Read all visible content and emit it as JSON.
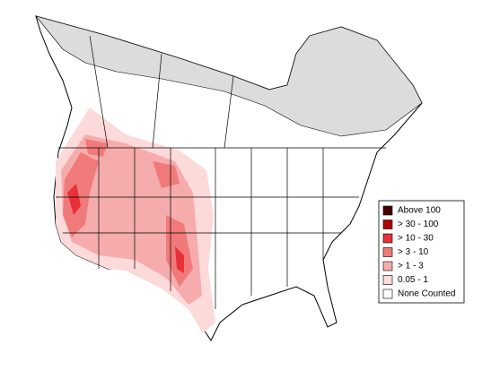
{
  "legend": {
    "items": [
      {
        "label": "Above 100",
        "color": "#4a0000"
      },
      {
        "label": "> 30 - 100",
        "color": "#b40000"
      },
      {
        "label": "> 10 - 30",
        "color": "#e83038"
      },
      {
        "label": "> 3 - 10",
        "color": "#f07a7a"
      },
      {
        "label": "> 1 - 3",
        "color": "#f6acac"
      },
      {
        "label": "0.05 - 1",
        "color": "#fcdada"
      },
      {
        "label": "None Counted",
        "color": "#ffffff"
      }
    ]
  }
}
